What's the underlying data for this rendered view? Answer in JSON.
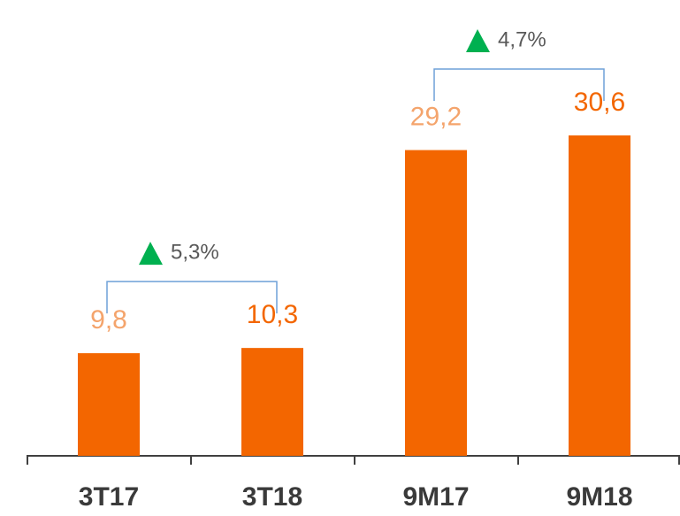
{
  "chart_data": {
    "type": "bar",
    "categories": [
      "3T17",
      "3T18",
      "9M17",
      "9M18"
    ],
    "values": [
      9.8,
      10.3,
      29.2,
      30.6
    ],
    "value_labels": [
      "9,8",
      "10,3",
      "29,2",
      "30,6"
    ],
    "color": "#f36600",
    "label_colors": [
      "#f4a46c",
      "#f36600",
      "#f4a46c",
      "#f36600"
    ],
    "annotations": [
      "5,3%",
      "4,7%"
    ],
    "annotation_marker_color": "#00b050",
    "bracket_color": "#6fa0d8"
  }
}
